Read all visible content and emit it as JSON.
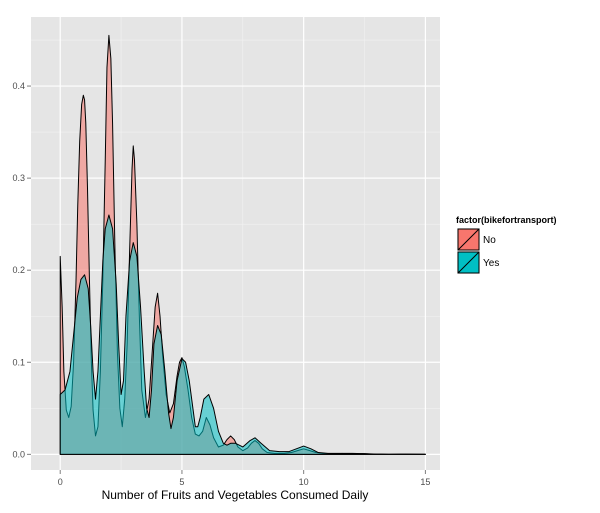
{
  "chart_data": {
    "type": "area",
    "xlabel": "Number of Fruits and Vegetables Consumed Daily",
    "ylabel": "",
    "xlim": [
      -1.2,
      15.6
    ],
    "ylim": [
      -0.017,
      0.475
    ],
    "xticks": [
      0,
      5,
      10,
      15
    ],
    "yticks": [
      0.0,
      0.1,
      0.2,
      0.3,
      0.4
    ],
    "ytick_labels": [
      "0.0",
      "0.1",
      "0.2",
      "0.3",
      "0.4"
    ],
    "grid": true,
    "legend": {
      "title": "factor(bikefortransport)",
      "position": "right"
    },
    "series": [
      {
        "name": "No",
        "color": "#F8766D",
        "x": [
          0,
          0.08,
          0.15,
          0.25,
          0.35,
          0.45,
          0.55,
          0.65,
          0.72,
          0.8,
          0.88,
          0.95,
          1,
          1.05,
          1.12,
          1.2,
          1.28,
          1.35,
          1.45,
          1.55,
          1.65,
          1.75,
          1.85,
          1.92,
          2,
          2.08,
          2.15,
          2.25,
          2.35,
          2.45,
          2.55,
          2.65,
          2.75,
          2.85,
          2.95,
          3,
          3.05,
          3.15,
          3.25,
          3.35,
          3.5,
          3.65,
          3.8,
          3.9,
          4,
          4.1,
          4.2,
          4.35,
          4.5,
          4.65,
          4.8,
          4.9,
          5,
          5.1,
          5.25,
          5.4,
          5.55,
          5.7,
          5.85,
          6,
          6.15,
          6.3,
          6.5,
          6.7,
          6.85,
          7,
          7.15,
          7.3,
          7.5,
          7.7,
          7.85,
          8,
          8.15,
          8.3,
          8.5,
          8.8,
          9.2,
          9.5,
          9.75,
          10,
          10.25,
          10.5,
          10.8,
          11.2,
          11.6,
          12,
          12.4,
          12.8,
          13.5,
          14.2,
          15
        ],
        "y": [
          0.215,
          0.16,
          0.09,
          0.048,
          0.04,
          0.052,
          0.1,
          0.19,
          0.27,
          0.34,
          0.38,
          0.39,
          0.385,
          0.36,
          0.29,
          0.19,
          0.1,
          0.048,
          0.02,
          0.03,
          0.09,
          0.19,
          0.32,
          0.42,
          0.455,
          0.43,
          0.36,
          0.22,
          0.11,
          0.05,
          0.03,
          0.06,
          0.12,
          0.22,
          0.31,
          0.335,
          0.32,
          0.25,
          0.15,
          0.07,
          0.04,
          0.06,
          0.12,
          0.16,
          0.175,
          0.15,
          0.11,
          0.065,
          0.045,
          0.055,
          0.085,
          0.1,
          0.105,
          0.095,
          0.07,
          0.04,
          0.022,
          0.02,
          0.025,
          0.04,
          0.032,
          0.018,
          0.008,
          0.01,
          0.016,
          0.02,
          0.016,
          0.008,
          0.004,
          0.007,
          0.012,
          0.015,
          0.012,
          0.006,
          0.002,
          0.001,
          0.001,
          0.002,
          0.004,
          0.006,
          0.004,
          0.002,
          0.001,
          0.0005,
          0.001,
          0.001,
          0.0008,
          0.0003,
          0.0001,
          0.0002,
          0.0001
        ]
      },
      {
        "name": "Yes",
        "color": "#00BFC4",
        "x": [
          0,
          0.2,
          0.4,
          0.55,
          0.7,
          0.85,
          1,
          1.15,
          1.25,
          1.35,
          1.45,
          1.55,
          1.65,
          1.75,
          1.85,
          2,
          2.15,
          2.3,
          2.4,
          2.5,
          2.6,
          2.7,
          2.85,
          3,
          3.15,
          3.3,
          3.45,
          3.55,
          3.65,
          3.75,
          3.85,
          4,
          4.15,
          4.3,
          4.45,
          4.55,
          4.65,
          4.8,
          5,
          5.15,
          5.3,
          5.45,
          5.55,
          5.65,
          5.75,
          5.9,
          6.1,
          6.3,
          6.5,
          6.7,
          6.85,
          7,
          7.2,
          7.5,
          7.8,
          8,
          8.25,
          8.6,
          9,
          9.4,
          9.7,
          10,
          10.3,
          10.6,
          11,
          11.5,
          12,
          12.5,
          13,
          13.5,
          14,
          15
        ],
        "y": [
          0.065,
          0.07,
          0.09,
          0.13,
          0.17,
          0.19,
          0.195,
          0.18,
          0.14,
          0.09,
          0.06,
          0.09,
          0.15,
          0.21,
          0.245,
          0.26,
          0.245,
          0.185,
          0.12,
          0.065,
          0.08,
          0.15,
          0.21,
          0.23,
          0.215,
          0.16,
          0.09,
          0.05,
          0.04,
          0.07,
          0.12,
          0.14,
          0.13,
          0.09,
          0.045,
          0.028,
          0.04,
          0.08,
          0.104,
          0.1,
          0.08,
          0.05,
          0.03,
          0.03,
          0.04,
          0.06,
          0.065,
          0.05,
          0.025,
          0.012,
          0.01,
          0.012,
          0.012,
          0.008,
          0.015,
          0.018,
          0.012,
          0.004,
          0.003,
          0.003,
          0.006,
          0.009,
          0.006,
          0.002,
          0.001,
          0.001,
          0.0005,
          0.0008,
          0.0003,
          0.0001,
          0.0002,
          0.0001
        ]
      }
    ]
  }
}
